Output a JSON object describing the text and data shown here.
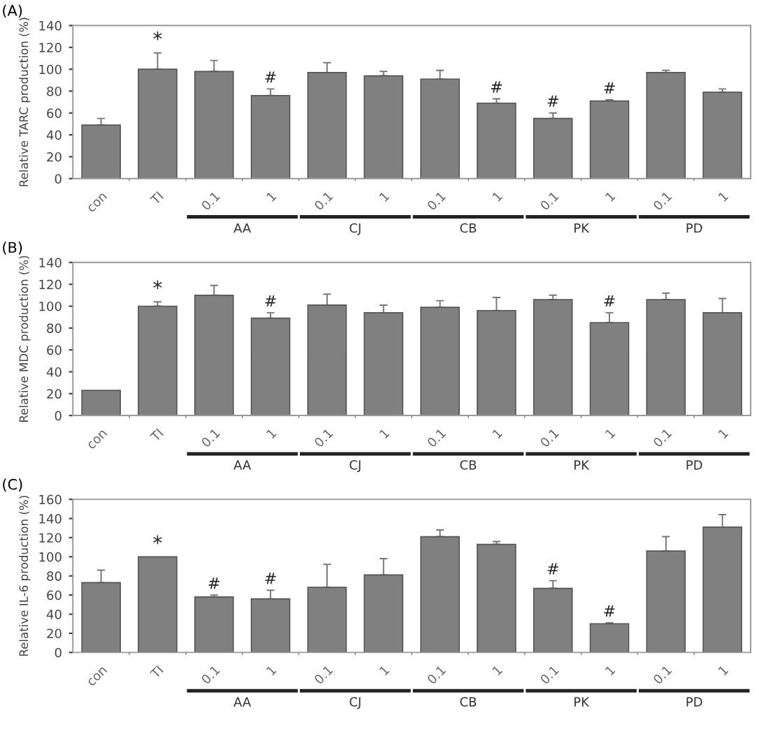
{
  "chart_data": [
    {
      "type": "bar",
      "title": "(A)",
      "ylabel": "Relative TARC production (%)",
      "categories": [
        "con",
        "TI",
        "0.1",
        "1",
        "0.1",
        "1",
        "0.1",
        "1",
        "0.1",
        "1",
        "0.1",
        "1"
      ],
      "values": [
        49,
        100,
        98,
        76,
        97,
        94,
        91,
        69,
        55,
        71,
        97,
        79
      ],
      "errors": [
        [
          49,
          55
        ],
        [
          100,
          115
        ],
        [
          98,
          108
        ],
        [
          76,
          82
        ],
        [
          97,
          106
        ],
        [
          94,
          98
        ],
        [
          91,
          99
        ],
        [
          69,
          73
        ],
        [
          55,
          60
        ],
        [
          71,
          72
        ],
        [
          97,
          99
        ],
        [
          79,
          82
        ]
      ],
      "value_labels": [
        null,
        "*",
        null,
        "#",
        null,
        null,
        null,
        "#",
        "#",
        "#",
        null,
        null
      ],
      "color": "#808080",
      "ylim": [
        0,
        140
      ],
      "yticks": [
        0,
        20,
        40,
        60,
        80,
        100,
        120,
        140
      ],
      "grid": false,
      "legend": false,
      "annotations": [
        "AA",
        "CJ",
        "CB",
        "PK",
        "PD"
      ]
    },
    {
      "type": "bar",
      "title": "(B)",
      "ylabel": "Relative MDC production (%)",
      "categories": [
        "con",
        "TI",
        "0.1",
        "1",
        "0.1",
        "1",
        "0.1",
        "1",
        "0.1",
        "1",
        "0.1",
        "1"
      ],
      "values": [
        23,
        100,
        110,
        89,
        101,
        94,
        99,
        96,
        106,
        85,
        106,
        94
      ],
      "errors": [
        null,
        [
          100,
          104
        ],
        [
          110,
          119
        ],
        [
          89,
          94
        ],
        [
          101,
          111
        ],
        [
          94,
          101
        ],
        [
          99,
          105
        ],
        [
          96,
          108
        ],
        [
          106,
          110
        ],
        [
          85,
          94
        ],
        [
          106,
          112
        ],
        [
          94,
          107
        ]
      ],
      "value_labels": [
        null,
        "*",
        null,
        "#",
        null,
        null,
        null,
        null,
        null,
        "#",
        null,
        null
      ],
      "color": "#808080",
      "ylim": [
        0,
        140
      ],
      "yticks": [
        0,
        20,
        40,
        60,
        80,
        100,
        120,
        140
      ],
      "grid": false,
      "legend": false,
      "annotations": [
        "AA",
        "CJ",
        "CB",
        "PK",
        "PD"
      ]
    },
    {
      "type": "bar",
      "title": "(C)",
      "ylabel": "Relative IL-6 production (%)",
      "categories": [
        "con",
        "TI",
        "0.1",
        "1",
        "0.1",
        "1",
        "0.1",
        "1",
        "0.1",
        "1",
        "0.1",
        "1"
      ],
      "values": [
        73,
        100,
        58,
        56,
        68,
        81,
        121,
        113,
        67,
        30,
        106,
        131
      ],
      "errors": [
        [
          73,
          86
        ],
        null,
        [
          58,
          60
        ],
        [
          56,
          65
        ],
        [
          68,
          92
        ],
        [
          81,
          98
        ],
        [
          121,
          128
        ],
        [
          113,
          116
        ],
        [
          67,
          75
        ],
        [
          30,
          31
        ],
        [
          106,
          121
        ],
        [
          131,
          144
        ]
      ],
      "value_labels": [
        null,
        "*",
        "#",
        "#",
        null,
        null,
        null,
        null,
        "#",
        "#",
        null,
        null
      ],
      "color": "#808080",
      "ylim": [
        0,
        160
      ],
      "yticks": [
        0,
        20,
        40,
        60,
        80,
        100,
        120,
        140,
        160
      ],
      "grid": false,
      "legend": false,
      "annotations": [
        "AA",
        "CJ",
        "CB",
        "PK",
        "PD"
      ]
    }
  ]
}
